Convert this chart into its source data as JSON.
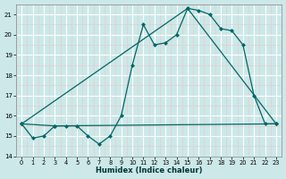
{
  "xlabel": "Humidex (Indice chaleur)",
  "xlim": [
    -0.5,
    23.5
  ],
  "ylim": [
    14,
    21.5
  ],
  "yticks": [
    14,
    15,
    16,
    17,
    18,
    19,
    20,
    21
  ],
  "xticks": [
    0,
    1,
    2,
    3,
    4,
    5,
    6,
    7,
    8,
    9,
    10,
    11,
    12,
    13,
    14,
    15,
    16,
    17,
    18,
    19,
    20,
    21,
    22,
    23
  ],
  "background_color": "#cce8e8",
  "grid_color": "#ffffff",
  "line_color": "#006666",
  "line1_x": [
    0,
    1,
    2,
    3,
    4,
    5,
    6,
    7,
    8,
    9,
    10,
    11,
    12,
    13,
    14,
    15,
    16,
    17,
    18,
    19,
    20,
    21,
    22,
    23
  ],
  "line1_y": [
    15.6,
    14.9,
    15.0,
    15.5,
    15.5,
    15.5,
    15.0,
    14.6,
    15.0,
    16.0,
    18.5,
    20.5,
    19.5,
    19.6,
    20.0,
    21.3,
    21.2,
    21.0,
    20.3,
    20.2,
    19.5,
    17.0,
    15.6,
    15.6
  ],
  "line2_x": [
    0,
    15,
    23
  ],
  "line2_y": [
    15.6,
    21.3,
    15.6
  ],
  "line3_x": [
    0,
    3,
    23
  ],
  "line3_y": [
    15.6,
    15.5,
    15.6
  ]
}
